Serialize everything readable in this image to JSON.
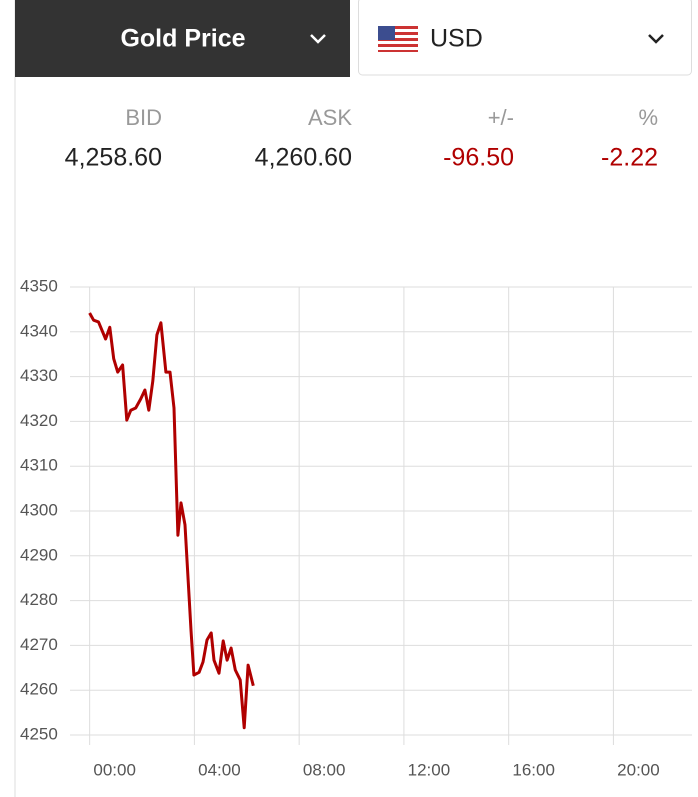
{
  "selector": {
    "metal": "Gold Price",
    "currency": "USD"
  },
  "quote": {
    "headers": [
      "BID",
      "ASK",
      "+/-",
      "%"
    ],
    "values": [
      "4,258.60",
      "4,260.60",
      "-96.50",
      "-2.22"
    ]
  },
  "chart_data": {
    "type": "line",
    "color": "#b00000",
    "grid": true,
    "x": [
      0,
      0.15,
      0.34,
      0.61,
      0.77,
      0.92,
      1.07,
      1.26,
      1.42,
      1.57,
      1.76,
      1.95,
      2.11,
      2.26,
      2.41,
      2.57,
      2.72,
      2.91,
      3.07,
      3.22,
      3.37,
      3.49,
      3.64,
      3.87,
      3.98,
      4.18,
      4.33,
      4.48,
      4.64,
      4.75,
      4.94,
      5.1,
      5.25,
      5.4,
      5.56,
      5.75,
      5.9,
      6.05,
      6.25
    ],
    "values": [
      4344.2,
      4342.6,
      4342.2,
      4338.4,
      4341,
      4334,
      4331,
      4332.6,
      4320.3,
      4322.5,
      4323,
      4325,
      4327,
      4322.5,
      4329,
      4339.3,
      4342,
      4331,
      4331,
      4323,
      4294.6,
      4301.8,
      4296.9,
      4273.4,
      4263.4,
      4264,
      4266.3,
      4271.2,
      4272.8,
      4266.7,
      4263.8,
      4271,
      4266.7,
      4269.4,
      4264.5,
      4262.3,
      4251.6,
      4265.6,
      4261
    ],
    "xlim": [
      -0.75,
      23
    ],
    "xticks": [
      {
        "value": 0,
        "label": "00:00"
      },
      {
        "value": 4,
        "label": "04:00"
      },
      {
        "value": 8,
        "label": "08:00"
      },
      {
        "value": 12,
        "label": "12:00"
      },
      {
        "value": 16,
        "label": "16:00"
      },
      {
        "value": 20,
        "label": "20:00"
      }
    ],
    "ylim": [
      4250,
      4350
    ],
    "yticks": [
      4250,
      4260,
      4270,
      4280,
      4290,
      4300,
      4310,
      4320,
      4330,
      4340,
      4350
    ]
  }
}
